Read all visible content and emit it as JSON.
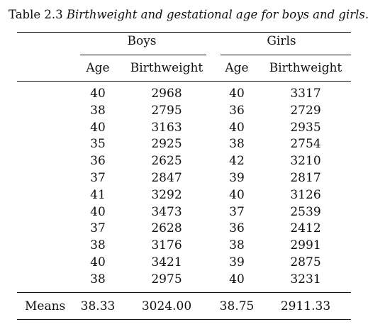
{
  "table": {
    "caption_label": "Table 2.3",
    "caption_text": "Birthweight and gestational age for boys and girls.",
    "group_headers": [
      "Boys",
      "Girls"
    ],
    "column_headers": [
      "Age",
      "Birthweight",
      "Age",
      "Birthweight"
    ],
    "rows": [
      [
        "40",
        "2968",
        "40",
        "3317"
      ],
      [
        "38",
        "2795",
        "36",
        "2729"
      ],
      [
        "40",
        "3163",
        "40",
        "2935"
      ],
      [
        "35",
        "2925",
        "38",
        "2754"
      ],
      [
        "36",
        "2625",
        "42",
        "3210"
      ],
      [
        "37",
        "2847",
        "39",
        "2817"
      ],
      [
        "41",
        "3292",
        "40",
        "3126"
      ],
      [
        "40",
        "3473",
        "37",
        "2539"
      ],
      [
        "37",
        "2628",
        "36",
        "2412"
      ],
      [
        "38",
        "3176",
        "38",
        "2991"
      ],
      [
        "40",
        "3421",
        "39",
        "2875"
      ],
      [
        "38",
        "2975",
        "40",
        "3231"
      ]
    ],
    "means_label": "Means",
    "means": [
      "38.33",
      "3024.00",
      "38.75",
      "2911.33"
    ]
  }
}
